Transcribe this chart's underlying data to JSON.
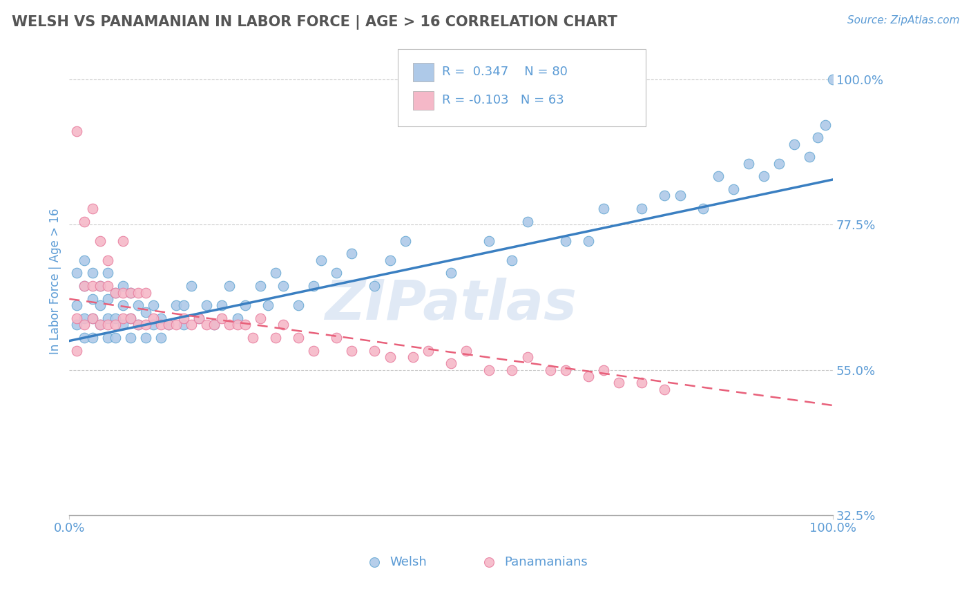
{
  "title": "WELSH VS PANAMANIAN IN LABOR FORCE | AGE > 16 CORRELATION CHART",
  "source_text": "Source: ZipAtlas.com",
  "ylabel": "In Labor Force | Age > 16",
  "xlim": [
    0.0,
    1.0
  ],
  "ylim": [
    0.525,
    1.05
  ],
  "yticks": [
    0.325,
    0.55,
    0.775,
    1.0
  ],
  "ytick_labels": [
    "32.5%",
    "55.0%",
    "77.5%",
    "100.0%"
  ],
  "xtick_labels": [
    "0.0%",
    "100.0%"
  ],
  "xticks": [
    0.0,
    1.0
  ],
  "welsh_color": "#aec9e8",
  "welsh_edge_color": "#6aaad4",
  "pana_color": "#f5b8c8",
  "pana_edge_color": "#e87fa0",
  "trend_welsh_color": "#3a7fc1",
  "trend_pana_color": "#e8607a",
  "R_welsh": 0.347,
  "N_welsh": 80,
  "R_pana": -0.103,
  "N_pana": 63,
  "watermark": "ZIPatlas",
  "background_color": "#ffffff",
  "grid_color": "#cccccc",
  "title_color": "#555555",
  "tick_color": "#5b9bd5",
  "legend_text_color": "#5b9bd5",
  "welsh_trend_start_y": 0.595,
  "welsh_trend_end_y": 0.845,
  "pana_trend_start_y": 0.66,
  "pana_trend_end_y": 0.495,
  "welsh_scatter_x": [
    0.01,
    0.01,
    0.01,
    0.02,
    0.02,
    0.02,
    0.02,
    0.03,
    0.03,
    0.03,
    0.03,
    0.04,
    0.04,
    0.04,
    0.05,
    0.05,
    0.05,
    0.05,
    0.06,
    0.06,
    0.06,
    0.07,
    0.07,
    0.07,
    0.08,
    0.08,
    0.08,
    0.09,
    0.09,
    0.1,
    0.1,
    0.11,
    0.11,
    0.12,
    0.12,
    0.13,
    0.14,
    0.15,
    0.15,
    0.16,
    0.17,
    0.18,
    0.19,
    0.2,
    0.21,
    0.22,
    0.23,
    0.25,
    0.26,
    0.27,
    0.28,
    0.3,
    0.32,
    0.33,
    0.35,
    0.37,
    0.4,
    0.42,
    0.44,
    0.5,
    0.55,
    0.58,
    0.6,
    0.65,
    0.68,
    0.7,
    0.75,
    0.78,
    0.8,
    0.83,
    0.85,
    0.87,
    0.89,
    0.91,
    0.93,
    0.95,
    0.97,
    0.98,
    0.99,
    1.0
  ],
  "welsh_scatter_y": [
    0.62,
    0.65,
    0.7,
    0.6,
    0.63,
    0.68,
    0.72,
    0.6,
    0.63,
    0.66,
    0.7,
    0.62,
    0.65,
    0.68,
    0.6,
    0.63,
    0.66,
    0.7,
    0.6,
    0.63,
    0.67,
    0.62,
    0.65,
    0.68,
    0.6,
    0.63,
    0.67,
    0.62,
    0.65,
    0.6,
    0.64,
    0.62,
    0.65,
    0.6,
    0.63,
    0.62,
    0.65,
    0.62,
    0.65,
    0.68,
    0.63,
    0.65,
    0.62,
    0.65,
    0.68,
    0.63,
    0.65,
    0.68,
    0.65,
    0.7,
    0.68,
    0.65,
    0.68,
    0.72,
    0.7,
    0.73,
    0.68,
    0.72,
    0.75,
    0.7,
    0.75,
    0.72,
    0.78,
    0.75,
    0.75,
    0.8,
    0.8,
    0.82,
    0.82,
    0.8,
    0.85,
    0.83,
    0.87,
    0.85,
    0.87,
    0.9,
    0.88,
    0.91,
    0.93,
    1.0
  ],
  "pana_scatter_x": [
    0.01,
    0.01,
    0.01,
    0.02,
    0.02,
    0.02,
    0.03,
    0.03,
    0.03,
    0.04,
    0.04,
    0.04,
    0.05,
    0.05,
    0.05,
    0.06,
    0.06,
    0.07,
    0.07,
    0.07,
    0.08,
    0.08,
    0.09,
    0.09,
    0.1,
    0.1,
    0.11,
    0.12,
    0.13,
    0.14,
    0.15,
    0.16,
    0.17,
    0.18,
    0.19,
    0.2,
    0.21,
    0.22,
    0.23,
    0.24,
    0.25,
    0.27,
    0.28,
    0.3,
    0.32,
    0.35,
    0.37,
    0.4,
    0.42,
    0.45,
    0.47,
    0.5,
    0.52,
    0.55,
    0.58,
    0.6,
    0.63,
    0.65,
    0.68,
    0.7,
    0.72,
    0.75,
    0.78
  ],
  "pana_scatter_y": [
    0.58,
    0.63,
    0.92,
    0.62,
    0.68,
    0.78,
    0.63,
    0.68,
    0.8,
    0.62,
    0.68,
    0.75,
    0.62,
    0.68,
    0.72,
    0.62,
    0.67,
    0.63,
    0.67,
    0.75,
    0.63,
    0.67,
    0.62,
    0.67,
    0.62,
    0.67,
    0.63,
    0.62,
    0.62,
    0.62,
    0.63,
    0.62,
    0.63,
    0.62,
    0.62,
    0.63,
    0.62,
    0.62,
    0.62,
    0.6,
    0.63,
    0.6,
    0.62,
    0.6,
    0.58,
    0.6,
    0.58,
    0.58,
    0.57,
    0.57,
    0.58,
    0.56,
    0.58,
    0.55,
    0.55,
    0.57,
    0.55,
    0.55,
    0.54,
    0.55,
    0.53,
    0.53,
    0.52
  ]
}
